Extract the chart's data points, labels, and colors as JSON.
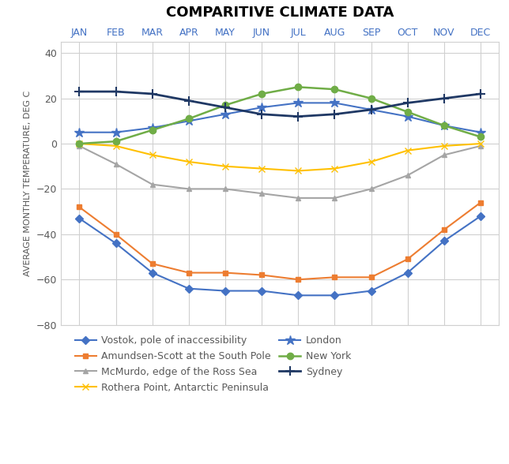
{
  "title": "COMPARITIVE CLIMATE DATA",
  "ylabel": "AVERAGE MONTHLY TEMPERATURE, DEG C",
  "months": [
    "JAN",
    "FEB",
    "MAR",
    "APR",
    "MAY",
    "JUN",
    "JUL",
    "AUG",
    "SEP",
    "OCT",
    "NOV",
    "DEC"
  ],
  "ylim": [
    -80,
    45
  ],
  "yticks": [
    -80,
    -60,
    -40,
    -20,
    0,
    20,
    40
  ],
  "series": [
    {
      "name": "Vostok, pole of inaccessibility",
      "data": [
        -33,
        -44,
        -57,
        -64,
        -65,
        -65,
        -67,
        -67,
        -65,
        -57,
        -43,
        -32
      ],
      "color": "#4472C4",
      "marker": "D",
      "markersize": 5,
      "linewidth": 1.5
    },
    {
      "name": "Amundsen-Scott at the South Pole",
      "data": [
        -28,
        -40,
        -53,
        -57,
        -57,
        -58,
        -60,
        -59,
        -59,
        -51,
        -38,
        -26
      ],
      "color": "#ED7D31",
      "marker": "s",
      "markersize": 5,
      "linewidth": 1.5
    },
    {
      "name": "McMurdo, edge of the Ross Sea",
      "data": [
        -1,
        -9,
        -18,
        -20,
        -20,
        -22,
        -24,
        -24,
        -20,
        -14,
        -5,
        -1
      ],
      "color": "#A5A5A5",
      "marker": "^",
      "markersize": 5,
      "linewidth": 1.5
    },
    {
      "name": "Rothera Point, Antarctic Peninsula",
      "data": [
        0,
        -1,
        -5,
        -8,
        -10,
        -11,
        -12,
        -11,
        -8,
        -3,
        -1,
        0
      ],
      "color": "#FFC000",
      "marker": "x",
      "markersize": 6,
      "linewidth": 1.5
    },
    {
      "name": "London",
      "data": [
        5,
        5,
        7,
        10,
        13,
        16,
        18,
        18,
        15,
        12,
        8,
        5
      ],
      "color": "#4472C4",
      "marker": "*",
      "markersize": 9,
      "linewidth": 1.5
    },
    {
      "name": "New York",
      "data": [
        0,
        1,
        6,
        11,
        17,
        22,
        25,
        24,
        20,
        14,
        8,
        3
      ],
      "color": "#70AD47",
      "marker": "o",
      "markersize": 6,
      "linewidth": 1.8
    },
    {
      "name": "Sydney",
      "data": [
        23,
        23,
        22,
        19,
        16,
        13,
        12,
        13,
        15,
        18,
        20,
        22
      ],
      "color": "#1F3864",
      "marker": "+",
      "markersize": 8,
      "linewidth": 2.0,
      "markeredgewidth": 1.5
    }
  ],
  "legend_order": [
    "Vostok, pole of inaccessibility",
    "Amundsen-Scott at the South Pole",
    "McMurdo, edge of the Ross Sea",
    "Rothera Point, Antarctic Peninsula",
    "London",
    "New York",
    "Sydney"
  ],
  "background_color": "#FFFFFF",
  "grid_color": "#D0D0D0",
  "spine_color": "#D0D0D0",
  "tick_color": "#4472C4",
  "tick_fontsize": 9,
  "ylabel_fontsize": 8,
  "title_fontsize": 13
}
